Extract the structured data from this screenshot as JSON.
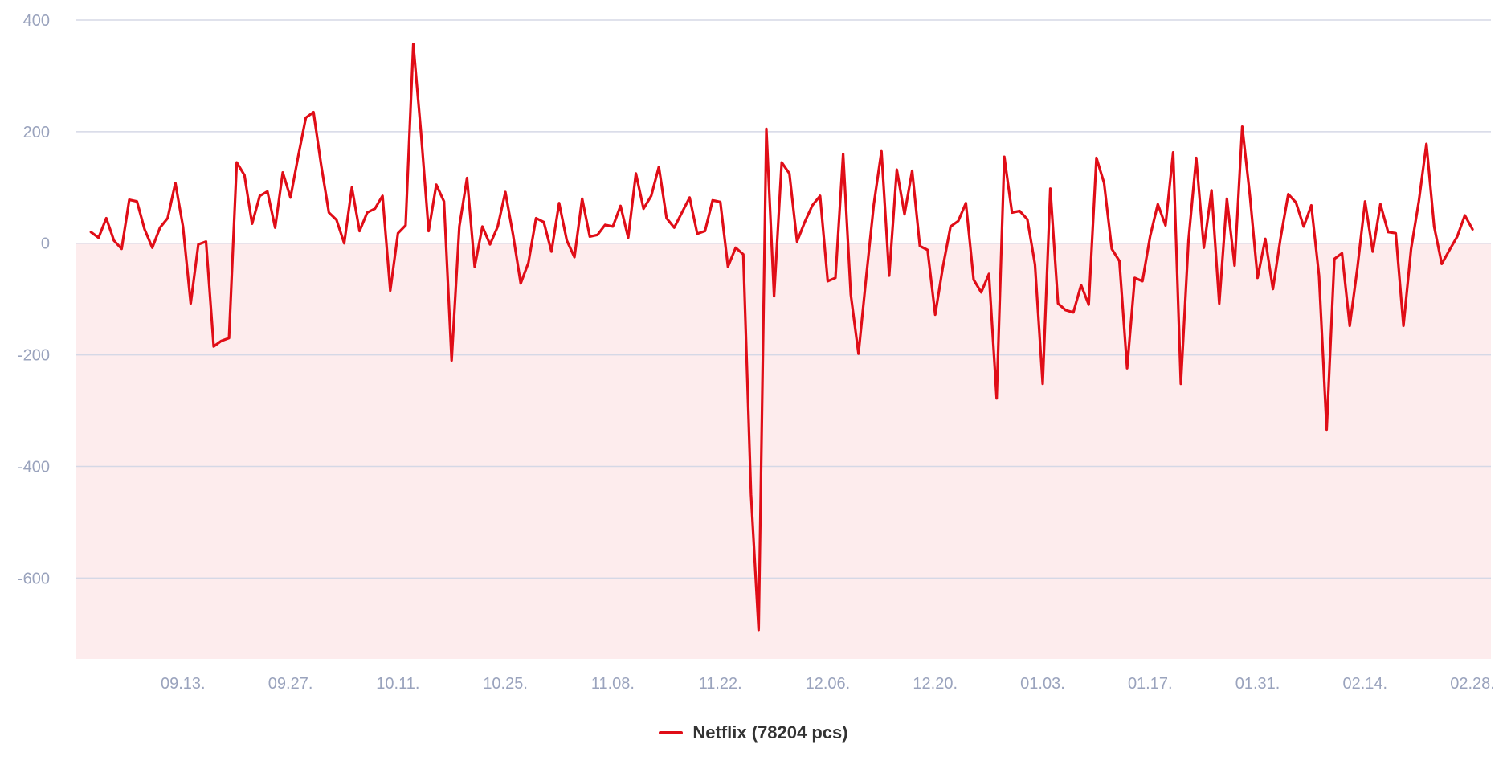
{
  "colors": {
    "series_line": "#e00d17",
    "negative_fill": "#fdeced",
    "grid": "#d5d8e6",
    "tick_text": "#9aa3bd"
  },
  "legend": {
    "label": "Netflix (78204 pcs)"
  },
  "chart_data": {
    "type": "line",
    "title": "",
    "xlabel": "",
    "ylabel": "",
    "ylim": [
      -745,
      400
    ],
    "y_ticks": [
      400,
      200,
      0,
      -200,
      -400,
      -600
    ],
    "x_tick_labels": [
      "09.13.",
      "09.27.",
      "10.11.",
      "10.25.",
      "11.08.",
      "11.22.",
      "12.06.",
      "12.20.",
      "01.03.",
      "01.17.",
      "01.31.",
      "02.14.",
      "02.28."
    ],
    "x_tick_positions": [
      12,
      26,
      40,
      54,
      68,
      82,
      96,
      110,
      124,
      138,
      152,
      166,
      180
    ],
    "x_range": [
      -1.9,
      182.4
    ],
    "grid": true,
    "negative_region_shaded": true,
    "legend_position": "bottom-center",
    "series": [
      {
        "name": "Netflix (78204 pcs)",
        "values": [
          20,
          10,
          45,
          5,
          -10,
          78,
          75,
          25,
          -8,
          28,
          45,
          108,
          30,
          -108,
          -2,
          3,
          -185,
          -175,
          -170,
          145,
          122,
          35,
          85,
          93,
          28,
          127,
          82,
          155,
          225,
          235,
          140,
          55,
          42,
          0,
          100,
          22,
          55,
          62,
          85,
          -85,
          18,
          32,
          357,
          200,
          22,
          105,
          75,
          -210,
          30,
          117,
          -42,
          30,
          -2,
          30,
          92,
          15,
          -72,
          -35,
          45,
          38,
          -15,
          72,
          5,
          -25,
          80,
          12,
          15,
          33,
          30,
          67,
          10,
          125,
          62,
          85,
          137,
          45,
          28,
          55,
          82,
          17,
          22,
          77,
          74,
          -42,
          -8,
          -20,
          -450,
          -693,
          205,
          -95,
          145,
          125,
          3,
          38,
          68,
          85,
          -68,
          -62,
          160,
          -92,
          -198,
          -62,
          70,
          165,
          -58,
          132,
          52,
          130,
          -5,
          -12,
          -128,
          -42,
          30,
          40,
          72,
          -65,
          -88,
          -55,
          -278,
          155,
          55,
          58,
          43,
          -38,
          -252,
          98,
          -108,
          -120,
          -124,
          -75,
          -110,
          153,
          108,
          -10,
          -32,
          -224,
          -62,
          -68,
          13,
          70,
          32,
          163,
          -252,
          5,
          153,
          -8,
          95,
          -108,
          80,
          -40,
          209,
          85,
          -62,
          8,
          -82,
          10,
          88,
          73,
          30,
          68,
          -58,
          -334,
          -28,
          -18,
          -148,
          -45,
          75,
          -15,
          70,
          20,
          18,
          -148,
          -10,
          75,
          178,
          30,
          -37,
          -12,
          12,
          50,
          25
        ]
      }
    ]
  }
}
